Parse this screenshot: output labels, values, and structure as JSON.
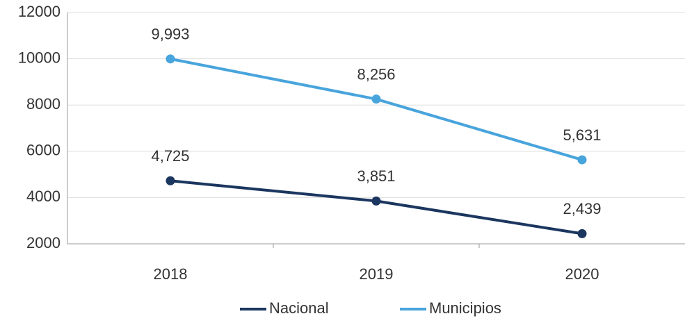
{
  "chart_data": {
    "type": "line",
    "categories": [
      "2018",
      "2019",
      "2020"
    ],
    "series": [
      {
        "name": "Nacional",
        "color": "#1b365f",
        "values": [
          4725,
          3851,
          2439
        ],
        "value_labels": [
          "4,725",
          "3,851",
          "2,439"
        ]
      },
      {
        "name": "Municipios",
        "color": "#48a4dc",
        "values": [
          9993,
          8256,
          5631
        ],
        "value_labels": [
          "9,993",
          "8,256",
          "5,631"
        ]
      }
    ],
    "ylim": [
      2000,
      12000
    ],
    "yticks": [
      2000,
      4000,
      6000,
      8000,
      10000,
      12000
    ],
    "grid": true,
    "legend": "bottom"
  }
}
